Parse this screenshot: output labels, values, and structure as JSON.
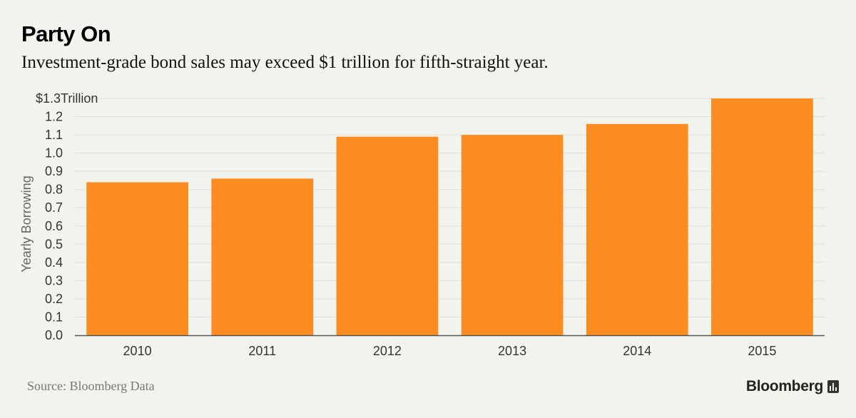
{
  "header": {
    "title": "Party On",
    "subtitle": "Investment-grade bond sales may exceed $1 trillion for fifth-straight year."
  },
  "footer": {
    "source": "Source: Bloomberg Data",
    "brand": "Bloomberg",
    "brand_icon": "chart-bars-icon"
  },
  "colors": {
    "background": "#f3f3ee",
    "bar": "#fa8c22",
    "gridline": "#dededa",
    "axis": "#555555",
    "tick_text": "#333333",
    "axis_label": "#666666"
  },
  "chart_data": {
    "type": "bar",
    "categories": [
      "2010",
      "2011",
      "2012",
      "2013",
      "2014",
      "2015"
    ],
    "values": [
      0.84,
      0.86,
      1.09,
      1.1,
      1.16,
      1.3
    ],
    "ylabel": "Yearly Borrowing",
    "ylim": [
      0,
      1.3
    ],
    "yticks": [
      0.0,
      0.1,
      0.2,
      0.3,
      0.4,
      0.5,
      0.6,
      0.7,
      0.8,
      0.9,
      1.0,
      1.1,
      1.2,
      1.3
    ],
    "ytick_labels": [
      "0.0",
      "0.1",
      "0.2",
      "0.3",
      "0.4",
      "0.5",
      "0.6",
      "0.7",
      "0.8",
      "0.9",
      "1.0",
      "1.1",
      "1.2",
      "$1.3Trillion"
    ],
    "grid": true,
    "legend": "none"
  }
}
